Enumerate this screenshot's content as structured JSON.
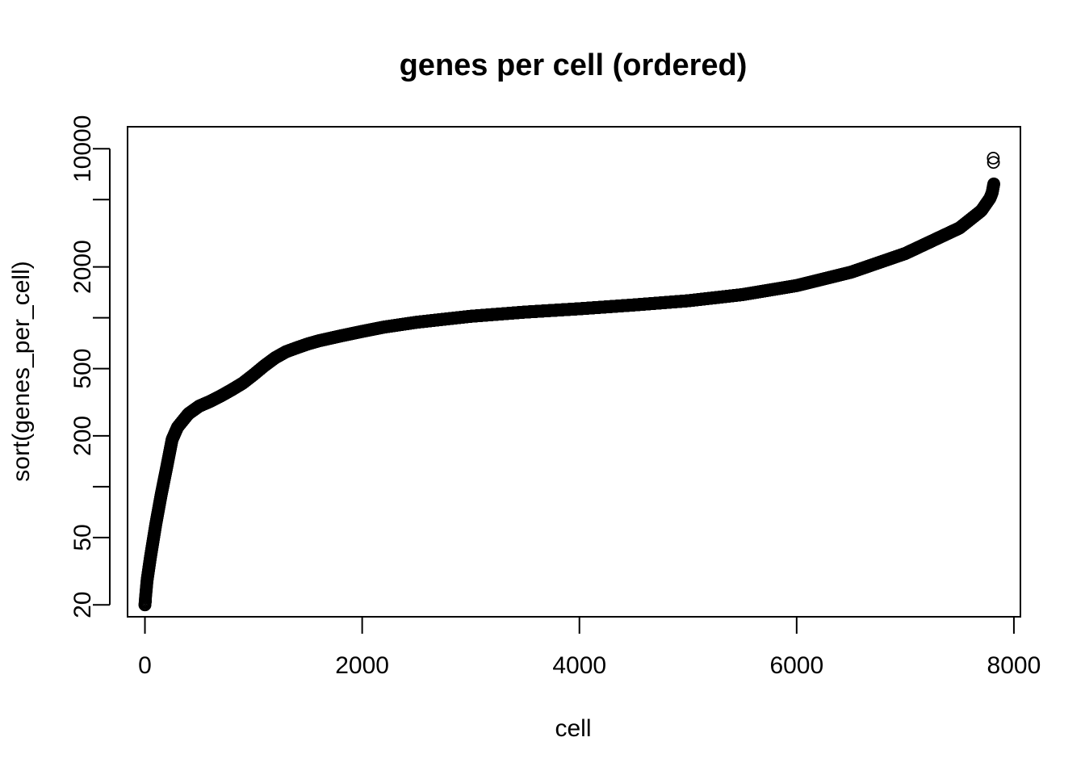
{
  "chart_data": {
    "type": "scatter",
    "title": "genes per cell (ordered)",
    "xlabel": "cell",
    "ylabel": "sort(genes_per_cell)",
    "xlim": [
      -160,
      8060
    ],
    "ylim": [
      17,
      13500
    ],
    "y_scale": "log",
    "grid": false,
    "x_ticks": [
      {
        "value": 0,
        "label": "0"
      },
      {
        "value": 2000,
        "label": "2000"
      },
      {
        "value": 4000,
        "label": "4000"
      },
      {
        "value": 6000,
        "label": "6000"
      },
      {
        "value": 8000,
        "label": "8000"
      }
    ],
    "y_ticks": [
      {
        "value": 20,
        "label": "20"
      },
      {
        "value": 50,
        "label": "50"
      },
      {
        "value": 100,
        "label": ""
      },
      {
        "value": 200,
        "label": "200"
      },
      {
        "value": 500,
        "label": "500"
      },
      {
        "value": 1000,
        "label": ""
      },
      {
        "value": 2000,
        "label": "2000"
      },
      {
        "value": 5000,
        "label": ""
      },
      {
        "value": 10000,
        "label": "10000"
      }
    ],
    "marker": "open-circle",
    "n_points": 7820,
    "curve_knots": {
      "x": [
        0,
        5,
        20,
        50,
        100,
        150,
        200,
        250,
        300,
        400,
        500,
        600,
        700,
        800,
        900,
        1000,
        1100,
        1200,
        1300,
        1400,
        1500,
        1600,
        1800,
        2000,
        2200,
        2500,
        3000,
        3500,
        4000,
        4500,
        5000,
        5500,
        6000,
        6500,
        7000,
        7500,
        7700,
        7780,
        7800,
        7815
      ],
      "y": [
        20,
        22,
        28,
        38,
        60,
        90,
        130,
        190,
        225,
        270,
        300,
        320,
        345,
        375,
        410,
        460,
        520,
        580,
        630,
        665,
        700,
        730,
        780,
        830,
        880,
        940,
        1020,
        1080,
        1130,
        1190,
        1260,
        1370,
        1550,
        1860,
        2400,
        3400,
        4300,
        5100,
        5500,
        6200
      ]
    },
    "outliers": [
      {
        "x": 7810,
        "y": 8800
      },
      {
        "x": 7812,
        "y": 8300
      },
      {
        "x": 5,
        "y": 21
      },
      {
        "x": 0,
        "y": 20
      }
    ]
  }
}
